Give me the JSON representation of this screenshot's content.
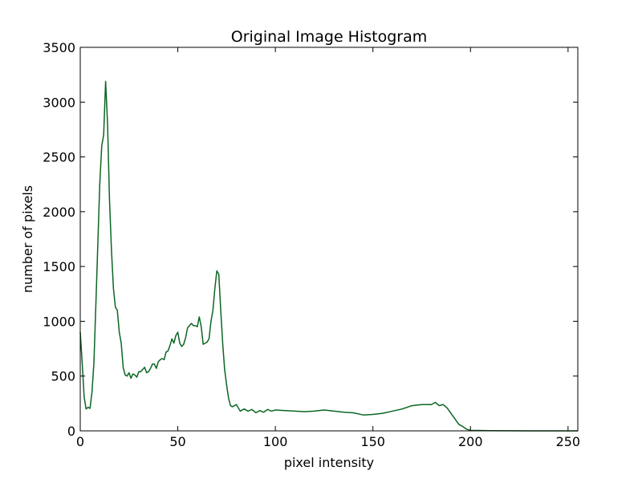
{
  "chart_data": {
    "type": "line",
    "title": "Original Image Histogram",
    "xlabel": "pixel intensity",
    "ylabel": "number of pixels",
    "xlim": [
      0,
      255
    ],
    "ylim": [
      0,
      3500
    ],
    "xticks": [
      0,
      50,
      100,
      150,
      200,
      250
    ],
    "yticks": [
      0,
      500,
      1000,
      1500,
      2000,
      2500,
      3000,
      3500
    ],
    "grid": false,
    "legend": "none",
    "series": [
      {
        "color": "#0b6623",
        "x": [
          0,
          1,
          2,
          3,
          4,
          5,
          6,
          7,
          8,
          9,
          10,
          11,
          12,
          13,
          14,
          15,
          16,
          17,
          18,
          19,
          20,
          21,
          22,
          23,
          24,
          25,
          26,
          27,
          28,
          29,
          30,
          31,
          32,
          33,
          34,
          35,
          36,
          37,
          38,
          39,
          40,
          41,
          42,
          43,
          44,
          45,
          46,
          47,
          48,
          49,
          50,
          51,
          52,
          53,
          54,
          55,
          56,
          57,
          58,
          59,
          60,
          61,
          62,
          63,
          64,
          65,
          66,
          67,
          68,
          69,
          70,
          71,
          72,
          73,
          74,
          75,
          76,
          77,
          78,
          79,
          80,
          82,
          84,
          86,
          88,
          90,
          92,
          94,
          96,
          98,
          100,
          105,
          110,
          115,
          120,
          125,
          130,
          135,
          140,
          145,
          150,
          155,
          160,
          165,
          170,
          175,
          180,
          182,
          184,
          186,
          188,
          190,
          192,
          194,
          196,
          198,
          200,
          210,
          220,
          230,
          240,
          250,
          255
        ],
        "y": [
          900,
          620,
          310,
          200,
          215,
          205,
          350,
          620,
          1150,
          1700,
          2250,
          2600,
          2700,
          3190,
          2800,
          2100,
          1650,
          1300,
          1130,
          1100,
          900,
          800,
          580,
          510,
          500,
          530,
          480,
          520,
          510,
          490,
          540,
          540,
          560,
          580,
          530,
          540,
          570,
          610,
          610,
          570,
          630,
          650,
          660,
          650,
          720,
          730,
          780,
          840,
          800,
          870,
          900,
          800,
          770,
          790,
          850,
          940,
          960,
          980,
          960,
          960,
          950,
          1040,
          950,
          790,
          800,
          810,
          840,
          1000,
          1100,
          1300,
          1460,
          1430,
          1100,
          800,
          560,
          420,
          300,
          230,
          220,
          230,
          240,
          180,
          200,
          180,
          195,
          165,
          185,
          170,
          195,
          180,
          190,
          185,
          180,
          175,
          180,
          190,
          180,
          170,
          165,
          145,
          150,
          160,
          180,
          200,
          230,
          240,
          240,
          260,
          230,
          240,
          210,
          160,
          110,
          60,
          40,
          15,
          5,
          2,
          1,
          0,
          0,
          0,
          0
        ]
      }
    ]
  }
}
